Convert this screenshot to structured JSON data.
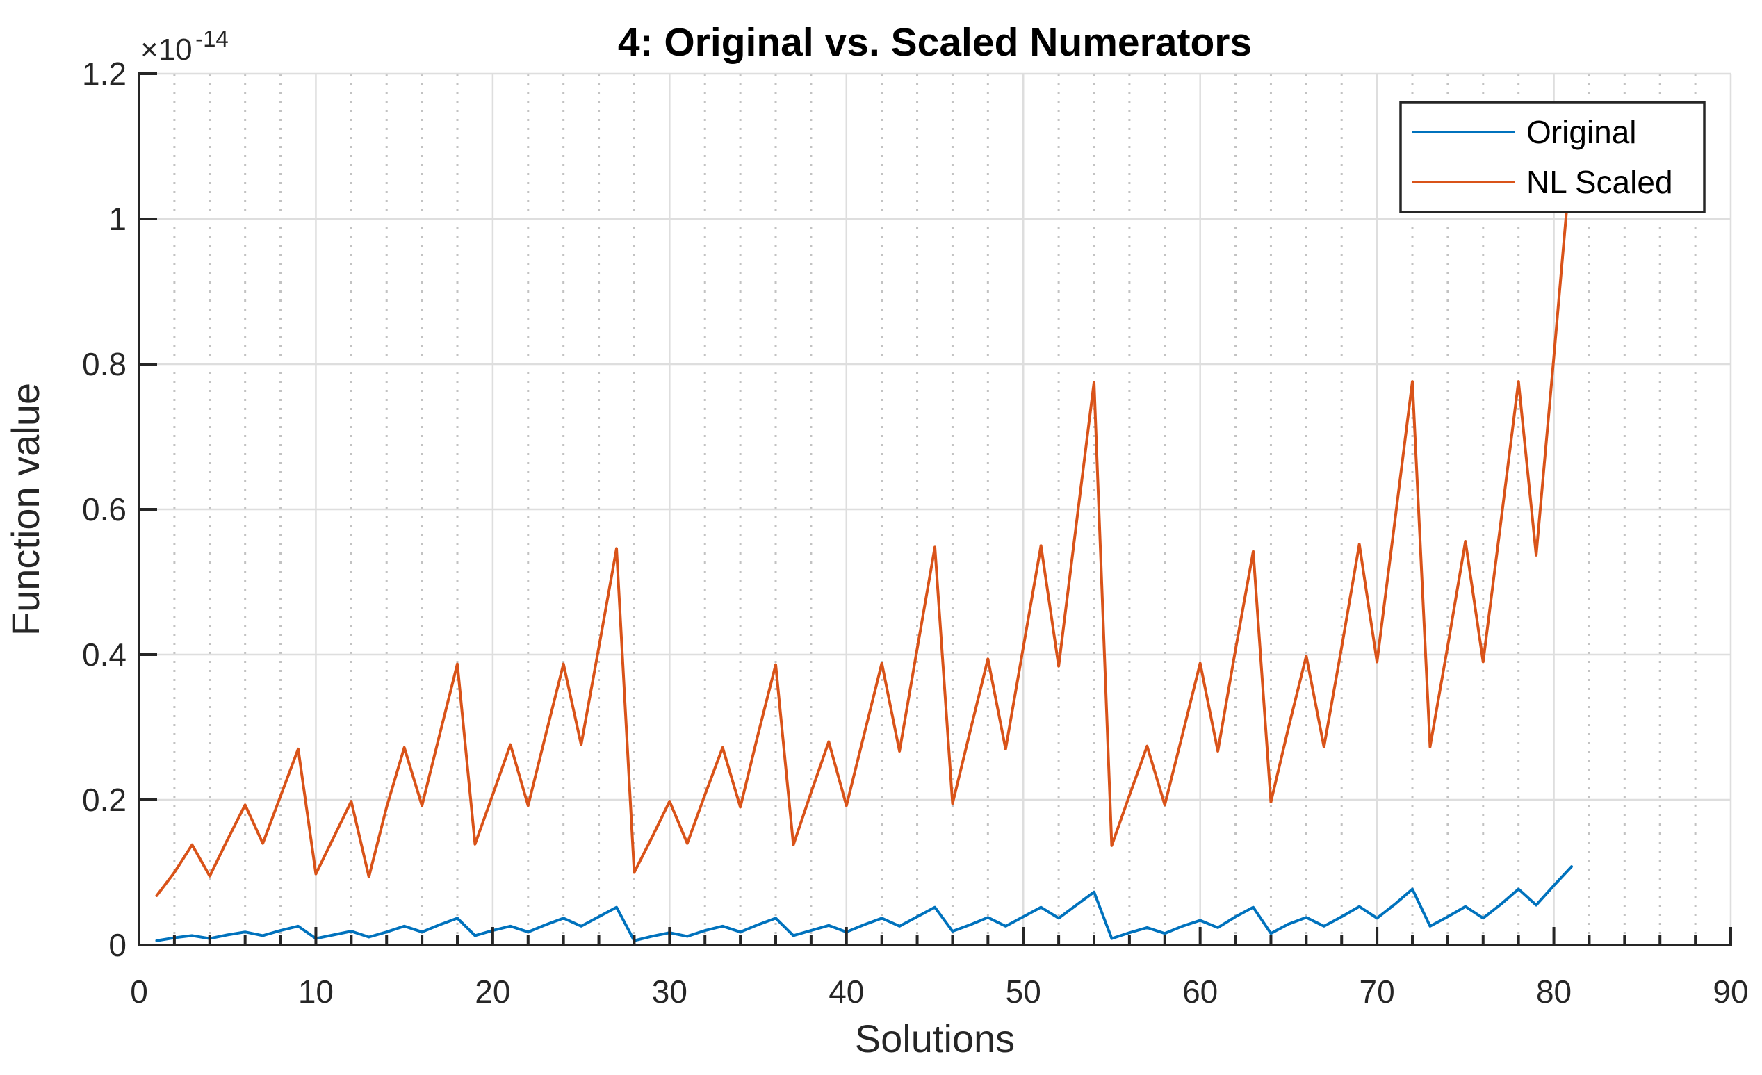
{
  "figure": {
    "title": "4: Original vs. Scaled Numerators",
    "xlabel": "Solutions",
    "ylabel": "Function value",
    "exponent_base": "×10",
    "exponent_power": "-14",
    "background_color": "#ffffff"
  },
  "legend": {
    "position": "top-right",
    "border_color": "#262626",
    "items": [
      {
        "label": "Original",
        "color": "#0072BD"
      },
      {
        "label": "NL Scaled",
        "color": "#D95319"
      }
    ]
  },
  "axes": {
    "x": {
      "min": 0,
      "max": 90,
      "major_step": 10,
      "minor_step": 2,
      "tick_labels": [
        "0",
        "10",
        "20",
        "30",
        "40",
        "50",
        "60",
        "70",
        "80",
        "90"
      ],
      "label": "Solutions"
    },
    "y": {
      "min": 0,
      "max": 1.2,
      "major_step": 0.2,
      "tick_labels": [
        "0",
        "0.2",
        "0.4",
        "0.6",
        "0.8",
        "1",
        "1.2"
      ],
      "unit_multiplier_text": "×10^-14",
      "label": "Function value"
    },
    "axis_color": "#262626",
    "major_grid_color": "#dedede",
    "minor_grid_color": "#c2c2c2"
  },
  "chart_data": {
    "type": "line",
    "title": "4: Original vs. Scaled Numerators",
    "xlabel": "Solutions",
    "ylabel": "Function value",
    "xlim": [
      0,
      90
    ],
    "ylim": [
      0,
      1.2
    ],
    "y_unit_multiplier": "1e-14",
    "grid": "major-solid, x-minor-dotted",
    "legend_position": "upper-right",
    "x": [
      1,
      2,
      3,
      4,
      5,
      6,
      7,
      8,
      9,
      10,
      11,
      12,
      13,
      14,
      15,
      16,
      17,
      18,
      19,
      20,
      21,
      22,
      23,
      24,
      25,
      26,
      27,
      28,
      29,
      30,
      31,
      32,
      33,
      34,
      35,
      36,
      37,
      38,
      39,
      40,
      41,
      42,
      43,
      44,
      45,
      46,
      47,
      48,
      49,
      50,
      51,
      52,
      53,
      54,
      55,
      56,
      57,
      58,
      59,
      60,
      61,
      62,
      63,
      64,
      65,
      66,
      67,
      68,
      69,
      70,
      71,
      72,
      73,
      74,
      75,
      76,
      77,
      78,
      79,
      80,
      81
    ],
    "series": [
      {
        "name": "Original",
        "color": "#0072BD",
        "values": [
          0.006,
          0.01,
          0.013,
          0.009,
          0.014,
          0.018,
          0.013,
          0.02,
          0.026,
          0.009,
          0.014,
          0.019,
          0.011,
          0.018,
          0.026,
          0.018,
          0.028,
          0.037,
          0.013,
          0.02,
          0.026,
          0.018,
          0.028,
          0.037,
          0.026,
          0.039,
          0.052,
          0.006,
          0.012,
          0.017,
          0.012,
          0.02,
          0.026,
          0.018,
          0.028,
          0.037,
          0.013,
          0.02,
          0.027,
          0.018,
          0.028,
          0.037,
          0.026,
          0.039,
          0.052,
          0.019,
          0.028,
          0.038,
          0.026,
          0.039,
          0.052,
          0.037,
          0.055,
          0.073,
          0.009,
          0.017,
          0.024,
          0.016,
          0.026,
          0.034,
          0.024,
          0.039,
          0.052,
          0.016,
          0.029,
          0.038,
          0.026,
          0.039,
          0.053,
          0.037,
          0.056,
          0.077,
          0.026,
          0.039,
          0.053,
          0.037,
          0.056,
          0.077,
          0.055,
          0.082,
          0.108
        ]
      },
      {
        "name": "NL Scaled",
        "color": "#D95319",
        "values": [
          0.068,
          0.1,
          0.138,
          0.095,
          0.145,
          0.193,
          0.14,
          0.205,
          0.27,
          0.098,
          0.148,
          0.198,
          0.094,
          0.19,
          0.272,
          0.192,
          0.29,
          0.387,
          0.139,
          0.207,
          0.276,
          0.192,
          0.29,
          0.387,
          0.276,
          0.41,
          0.546,
          0.1,
          0.148,
          0.198,
          0.14,
          0.207,
          0.272,
          0.19,
          0.29,
          0.386,
          0.138,
          0.21,
          0.28,
          0.192,
          0.29,
          0.388,
          0.267,
          0.408,
          0.548,
          0.195,
          0.295,
          0.394,
          0.27,
          0.41,
          0.55,
          0.384,
          0.58,
          0.775,
          0.137,
          0.206,
          0.274,
          0.193,
          0.29,
          0.388,
          0.267,
          0.407,
          0.542,
          0.197,
          0.3,
          0.398,
          0.273,
          0.41,
          0.552,
          0.39,
          0.582,
          0.776,
          0.273,
          0.412,
          0.556,
          0.39,
          0.582,
          0.776,
          0.537,
          0.81,
          1.09
        ]
      }
    ]
  }
}
